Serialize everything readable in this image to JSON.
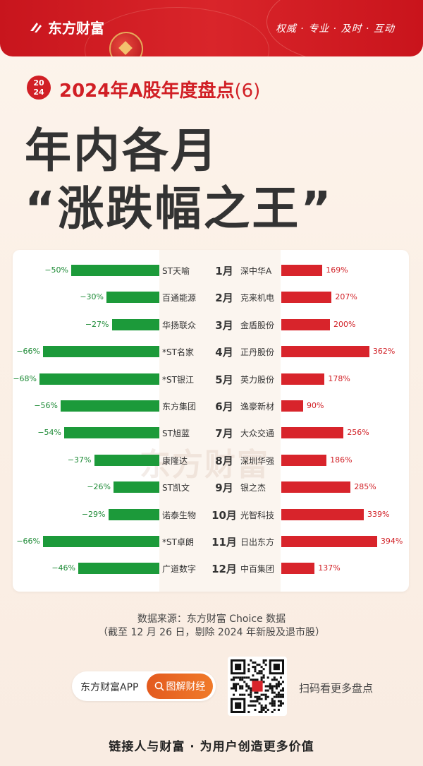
{
  "header": {
    "brand": "东方财富",
    "slogan": "权威 · 专业 · 及时 · 互动"
  },
  "title": {
    "year_badge_top": "20",
    "year_badge_bottom": "24",
    "subtitle": "2024年A股年度盘点",
    "subtitle_num": "(6)",
    "line1": "年内各月",
    "line2": "“涨跌幅之王”"
  },
  "watermark": "东方财富",
  "colors": {
    "up": "#d8242b",
    "down": "#1c9a3a",
    "brand": "#d11f25",
    "accent": "#f07a2a"
  },
  "chart_data": {
    "type": "bar",
    "categories": [
      "1月",
      "2月",
      "3月",
      "4月",
      "5月",
      "6月",
      "7月",
      "8月",
      "9月",
      "10月",
      "11月",
      "12月"
    ],
    "series": [
      {
        "stocks": [
          "ST天喻",
          "百通能源",
          "华扬联众",
          "*ST名家",
          "*ST银江",
          "东方集团",
          "ST旭蓝",
          "康隆达",
          "ST凯文",
          "诺泰生物",
          "*ST卓朗",
          "广道数字"
        ],
        "values": [
          -50,
          -30,
          -27,
          -66,
          -68,
          -56,
          -54,
          -37,
          -26,
          -29,
          -66,
          -46
        ],
        "labels": [
          "−50%",
          "−30%",
          "−27%",
          "−66%",
          "−68%",
          "−56%",
          "−54%",
          "−37%",
          "−26%",
          "−29%",
          "−66%",
          "−46%"
        ]
      },
      {
        "stocks": [
          "深中华A",
          "克来机电",
          "金盾股份",
          "正丹股份",
          "英力股份",
          "逸豪新材",
          "大众交通",
          "深圳华强",
          "银之杰",
          "光智科技",
          "日出东方",
          "中百集团"
        ],
        "values": [
          169,
          207,
          200,
          362,
          178,
          90,
          256,
          186,
          285,
          339,
          394,
          137
        ],
        "labels": [
          "169%",
          "207%",
          "200%",
          "362%",
          "178%",
          "90%",
          "256%",
          "186%",
          "285%",
          "339%",
          "394%",
          "137%"
        ]
      }
    ]
  },
  "source": {
    "line1": "数据来源：东方财富 Choice 数据",
    "line2": "（截至 12 月 26 日，剔除 2024 年新股及退市股）"
  },
  "app": {
    "name": "东方财富APP",
    "button": "图解财经",
    "scan_text": "扫码看更多盘点"
  },
  "footer": "链接人与财富 · 为用户创造更多价值"
}
